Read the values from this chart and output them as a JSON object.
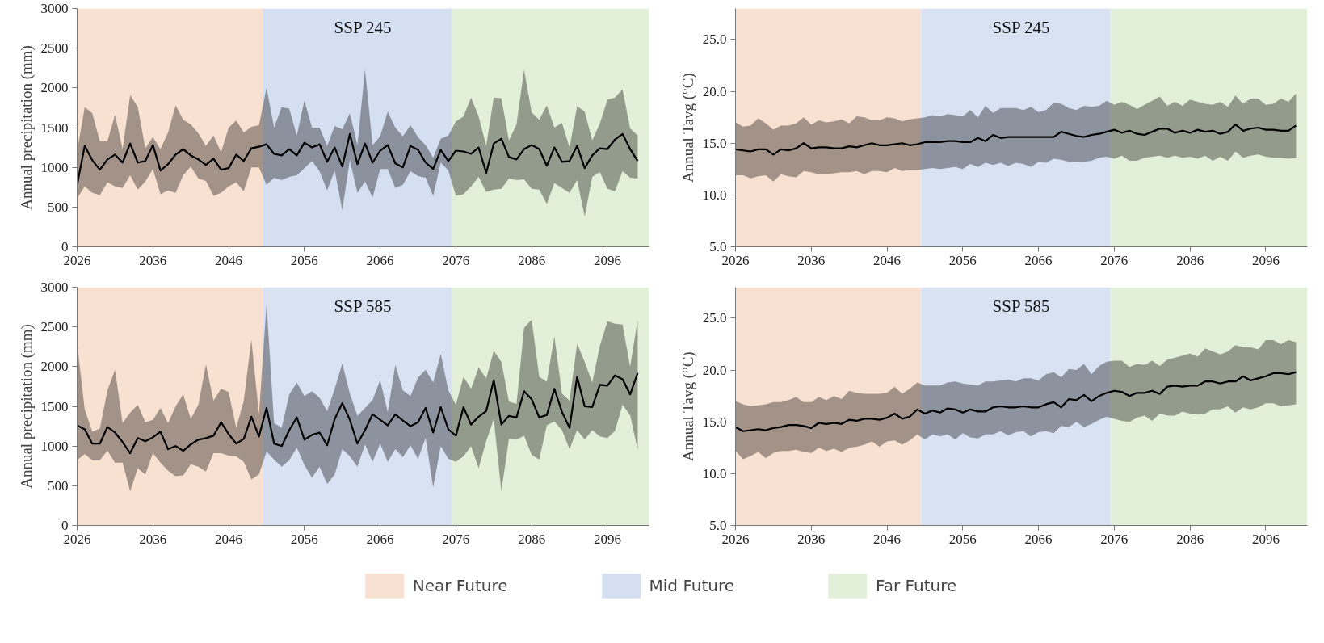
{
  "chart_data": [
    {
      "type": "line",
      "title": "SSP 245",
      "ylabel": "Annual precipitation (mm)",
      "legend": "bottom",
      "grid": false,
      "xlim": [
        2026,
        2101.5
      ],
      "xticks": [
        2026,
        2036,
        2046,
        2056,
        2066,
        2076,
        2086,
        2096
      ],
      "ylim": [
        0,
        3000
      ],
      "yticks": [
        0,
        500,
        1000,
        1500,
        2000,
        2500,
        3000
      ],
      "bands": [
        {
          "axis": "x",
          "from": 2026,
          "to": 2050.5,
          "label": "Near Future",
          "color": "#f9e1d2"
        },
        {
          "axis": "x",
          "from": 2050.5,
          "to": 2075.5,
          "label": "Mid Future",
          "color": "#d4dff2"
        },
        {
          "axis": "x",
          "from": 2075.5,
          "to": 2101.5,
          "label": "Far Future",
          "color": "#e2efd9"
        }
      ],
      "x": [
        2026,
        2027,
        2028,
        2029,
        2030,
        2031,
        2032,
        2033,
        2034,
        2035,
        2036,
        2037,
        2038,
        2039,
        2040,
        2041,
        2042,
        2043,
        2044,
        2045,
        2046,
        2047,
        2048,
        2049,
        2050,
        2051,
        2052,
        2053,
        2054,
        2055,
        2056,
        2057,
        2058,
        2059,
        2060,
        2061,
        2062,
        2063,
        2064,
        2065,
        2066,
        2067,
        2068,
        2069,
        2070,
        2071,
        2072,
        2073,
        2074,
        2075,
        2076,
        2077,
        2078,
        2079,
        2080,
        2081,
        2082,
        2083,
        2084,
        2085,
        2086,
        2087,
        2088,
        2089,
        2090,
        2091,
        2092,
        2093,
        2094,
        2095,
        2096,
        2097,
        2098,
        2099,
        2100
      ],
      "series": [
        {
          "color": "#000000",
          "values": [
            780,
            1270,
            1090,
            970,
            1100,
            1160,
            1060,
            1300,
            1060,
            1080,
            1280,
            960,
            1040,
            1160,
            1230,
            1150,
            1100,
            1030,
            1110,
            970,
            990,
            1160,
            1080,
            1240,
            1260,
            1290,
            1170,
            1150,
            1230,
            1150,
            1310,
            1250,
            1290,
            1070,
            1250,
            1010,
            1420,
            1040,
            1300,
            1060,
            1210,
            1280,
            1050,
            1000,
            1270,
            1220,
            1060,
            980,
            1220,
            1080,
            1210,
            1200,
            1170,
            1250,
            930,
            1300,
            1360,
            1130,
            1100,
            1230,
            1280,
            1230,
            1020,
            1250,
            1070,
            1080,
            1270,
            990,
            1150,
            1240,
            1230,
            1350,
            1420,
            1230,
            1080
          ],
          "upper": [
            1200,
            1760,
            1680,
            1330,
            1330,
            1660,
            1230,
            1910,
            1760,
            1240,
            1380,
            1230,
            1440,
            1780,
            1600,
            1540,
            1430,
            1270,
            1400,
            1190,
            1500,
            1590,
            1440,
            1510,
            1530,
            2000,
            1500,
            1760,
            1740,
            1400,
            1840,
            1500,
            1500,
            1270,
            1520,
            1480,
            1680,
            1280,
            2230,
            1280,
            1390,
            1700,
            1500,
            1390,
            1530,
            1380,
            1280,
            1120,
            1360,
            1400,
            1580,
            1640,
            1880,
            1640,
            1270,
            1880,
            1870,
            1340,
            1540,
            2230,
            1690,
            1600,
            1780,
            1500,
            1560,
            1250,
            1770,
            1700,
            1340,
            1550,
            1850,
            1880,
            1980,
            1490,
            1400
          ],
          "lower": [
            610,
            760,
            680,
            650,
            810,
            760,
            740,
            900,
            720,
            820,
            980,
            660,
            710,
            680,
            900,
            1010,
            860,
            830,
            640,
            680,
            760,
            810,
            700,
            1000,
            1000,
            780,
            870,
            840,
            880,
            900,
            990,
            1080,
            950,
            710,
            960,
            460,
            1090,
            680,
            820,
            620,
            980,
            980,
            740,
            780,
            950,
            890,
            870,
            640,
            1060,
            960,
            640,
            660,
            760,
            880,
            690,
            720,
            730,
            860,
            840,
            850,
            730,
            720,
            540,
            800,
            740,
            680,
            840,
            380,
            880,
            940,
            730,
            700,
            950,
            870,
            860
          ]
        }
      ]
    },
    {
      "type": "line",
      "title": "SSP 245",
      "ylabel": "Annual Tavg (°C)",
      "grid": false,
      "xlim": [
        2026,
        2101.5
      ],
      "xticks": [
        2026,
        2036,
        2046,
        2056,
        2066,
        2076,
        2086,
        2096
      ],
      "ylim": [
        5,
        28
      ],
      "yticks": [
        {
          "value": 5,
          "label": "5.0"
        },
        {
          "value": 10,
          "label": "10.0"
        },
        {
          "value": 15,
          "label": "15.0"
        },
        {
          "value": 20,
          "label": "20.0"
        },
        {
          "value": 25,
          "label": "25.0"
        }
      ],
      "bands": [
        {
          "axis": "x",
          "from": 2026,
          "to": 2050.5,
          "color": "#f9e1d2"
        },
        {
          "axis": "x",
          "from": 2050.5,
          "to": 2075.5,
          "color": "#d9e2f3"
        },
        {
          "axis": "x",
          "from": 2075.5,
          "to": 2101.5,
          "color": "#e2efd9"
        }
      ],
      "x": [
        2026,
        2027,
        2028,
        2029,
        2030,
        2031,
        2032,
        2033,
        2034,
        2035,
        2036,
        2037,
        2038,
        2039,
        2040,
        2041,
        2042,
        2043,
        2044,
        2045,
        2046,
        2047,
        2048,
        2049,
        2050,
        2051,
        2052,
        2053,
        2054,
        2055,
        2056,
        2057,
        2058,
        2059,
        2060,
        2061,
        2062,
        2063,
        2064,
        2065,
        2066,
        2067,
        2068,
        2069,
        2070,
        2071,
        2072,
        2073,
        2074,
        2075,
        2076,
        2077,
        2078,
        2079,
        2080,
        2081,
        2082,
        2083,
        2084,
        2085,
        2086,
        2087,
        2088,
        2089,
        2090,
        2091,
        2092,
        2093,
        2094,
        2095,
        2096,
        2097,
        2098,
        2099,
        2100
      ],
      "series": [
        {
          "color": "#000000",
          "values": [
            14.4,
            14.3,
            14.2,
            14.4,
            14.4,
            13.9,
            14.4,
            14.3,
            14.5,
            15.0,
            14.5,
            14.6,
            14.6,
            14.5,
            14.5,
            14.7,
            14.6,
            14.8,
            15.0,
            14.8,
            14.8,
            14.9,
            15.0,
            14.8,
            14.9,
            15.1,
            15.1,
            15.1,
            15.2,
            15.2,
            15.1,
            15.1,
            15.5,
            15.2,
            15.8,
            15.5,
            15.6,
            15.6,
            15.6,
            15.6,
            15.6,
            15.6,
            15.6,
            16.1,
            15.9,
            15.7,
            15.6,
            15.8,
            15.9,
            16.1,
            16.3,
            16.0,
            16.2,
            15.9,
            15.8,
            16.1,
            16.4,
            16.4,
            16.0,
            16.2,
            16.0,
            16.3,
            16.1,
            16.2,
            15.9,
            16.1,
            16.8,
            16.2,
            16.4,
            16.5,
            16.3,
            16.3,
            16.2,
            16.2,
            16.7
          ],
          "upper": [
            17.0,
            16.6,
            16.7,
            17.4,
            16.9,
            16.3,
            16.7,
            16.7,
            16.9,
            17.5,
            16.8,
            17.2,
            17.0,
            17.1,
            17.3,
            16.9,
            17.6,
            17.5,
            17.2,
            17.2,
            17.5,
            17.4,
            17.1,
            17.3,
            17.4,
            17.5,
            17.7,
            17.6,
            17.8,
            17.7,
            17.6,
            18.2,
            17.5,
            18.6,
            17.9,
            18.4,
            18.4,
            18.4,
            18.2,
            18.5,
            18.0,
            18.2,
            18.9,
            18.8,
            18.4,
            18.2,
            18.6,
            18.5,
            18.6,
            19.1,
            18.7,
            19.0,
            18.7,
            18.3,
            18.7,
            19.1,
            19.5,
            18.6,
            19.0,
            18.6,
            19.2,
            19.0,
            18.8,
            18.7,
            19.0,
            18.5,
            19.6,
            18.8,
            19.3,
            19.3,
            18.7,
            18.8,
            19.3,
            19.0,
            19.8
          ],
          "lower": [
            11.9,
            11.9,
            11.6,
            11.8,
            11.9,
            11.3,
            12.0,
            11.8,
            11.7,
            12.3,
            12.2,
            12.0,
            12.0,
            12.1,
            12.2,
            12.2,
            12.3,
            12.0,
            12.3,
            12.3,
            12.2,
            12.6,
            12.3,
            12.4,
            12.4,
            12.5,
            12.6,
            12.5,
            12.6,
            12.7,
            12.5,
            13.0,
            12.7,
            13.1,
            12.9,
            13.1,
            12.8,
            13.1,
            13.0,
            12.7,
            13.2,
            13.1,
            13.5,
            13.4,
            13.2,
            13.2,
            13.2,
            13.3,
            13.6,
            13.7,
            13.5,
            13.8,
            13.3,
            13.3,
            13.6,
            13.7,
            13.8,
            13.6,
            13.8,
            13.6,
            13.7,
            13.5,
            13.8,
            13.3,
            13.7,
            13.3,
            14.2,
            13.6,
            13.8,
            13.9,
            13.7,
            13.6,
            13.6,
            13.5,
            13.6
          ]
        }
      ]
    },
    {
      "type": "line",
      "title": "SSP 585",
      "ylabel": "Annual precipitation (mm)",
      "grid": false,
      "xlim": [
        2026,
        2101.5
      ],
      "xticks": [
        2026,
        2036,
        2046,
        2056,
        2066,
        2076,
        2086,
        2096
      ],
      "ylim": [
        0,
        3000
      ],
      "yticks": [
        0,
        500,
        1000,
        1500,
        2000,
        2500,
        3000
      ],
      "bands": [
        {
          "axis": "x",
          "from": 2026,
          "to": 2050.5,
          "color": "#f9e1d2"
        },
        {
          "axis": "x",
          "from": 2050.5,
          "to": 2075.5,
          "color": "#d9e2f3"
        },
        {
          "axis": "x",
          "from": 2075.5,
          "to": 2101.5,
          "color": "#e2efd9"
        }
      ],
      "x": [
        2026,
        2027,
        2028,
        2029,
        2030,
        2031,
        2032,
        2033,
        2034,
        2035,
        2036,
        2037,
        2038,
        2039,
        2040,
        2041,
        2042,
        2043,
        2044,
        2045,
        2046,
        2047,
        2048,
        2049,
        2050,
        2051,
        2052,
        2053,
        2054,
        2055,
        2056,
        2057,
        2058,
        2059,
        2060,
        2061,
        2062,
        2063,
        2064,
        2065,
        2066,
        2067,
        2068,
        2069,
        2070,
        2071,
        2072,
        2073,
        2074,
        2075,
        2076,
        2077,
        2078,
        2079,
        2080,
        2081,
        2082,
        2083,
        2084,
        2085,
        2086,
        2087,
        2088,
        2089,
        2090,
        2091,
        2092,
        2093,
        2094,
        2095,
        2096,
        2097,
        2098,
        2099,
        2100
      ],
      "series": [
        {
          "color": "#000000",
          "values": [
            1260,
            1210,
            1030,
            1030,
            1240,
            1170,
            1050,
            910,
            1100,
            1060,
            1110,
            1180,
            960,
            1000,
            940,
            1020,
            1080,
            1100,
            1130,
            1300,
            1150,
            1030,
            1090,
            1370,
            1120,
            1480,
            1030,
            1000,
            1200,
            1360,
            1080,
            1140,
            1170,
            1010,
            1340,
            1540,
            1330,
            1030,
            1200,
            1400,
            1330,
            1260,
            1400,
            1320,
            1250,
            1300,
            1480,
            1170,
            1490,
            1210,
            1130,
            1490,
            1270,
            1370,
            1440,
            1830,
            1270,
            1380,
            1360,
            1690,
            1590,
            1360,
            1390,
            1720,
            1430,
            1230,
            1870,
            1500,
            1490,
            1770,
            1760,
            1890,
            1840,
            1650,
            1920
          ],
          "upper": [
            2290,
            1460,
            1180,
            1220,
            1700,
            1960,
            1290,
            1420,
            1520,
            1300,
            1330,
            1480,
            1290,
            1500,
            1650,
            1340,
            1520,
            2030,
            1570,
            1720,
            1680,
            1230,
            1570,
            2340,
            1400,
            2790,
            1290,
            1230,
            1650,
            1800,
            1630,
            1690,
            1610,
            1440,
            1720,
            2040,
            1660,
            1380,
            1480,
            1580,
            1830,
            1430,
            2020,
            1700,
            1630,
            1860,
            1960,
            1800,
            2160,
            1700,
            1520,
            1870,
            1720,
            1990,
            1850,
            2200,
            2060,
            1560,
            1530,
            2490,
            2590,
            1870,
            1810,
            2380,
            1660,
            1570,
            2290,
            2060,
            1800,
            2260,
            2570,
            2540,
            2530,
            2000,
            2590
          ],
          "lower": [
            820,
            900,
            820,
            820,
            940,
            790,
            790,
            430,
            720,
            640,
            910,
            790,
            690,
            620,
            630,
            770,
            740,
            680,
            910,
            910,
            880,
            870,
            800,
            580,
            640,
            930,
            830,
            740,
            820,
            980,
            760,
            600,
            740,
            520,
            640,
            960,
            870,
            740,
            1020,
            800,
            1030,
            800,
            960,
            860,
            1010,
            840,
            1100,
            480,
            1000,
            840,
            800,
            870,
            1000,
            720,
            1060,
            1340,
            430,
            1090,
            1080,
            1130,
            890,
            830,
            1260,
            1310,
            1200,
            960,
            1200,
            1080,
            1200,
            1120,
            1100,
            1190,
            1520,
            1390,
            950
          ]
        }
      ]
    },
    {
      "type": "line",
      "title": "SSP 585",
      "ylabel": "Annual Tavg (°C)",
      "grid": false,
      "xlim": [
        2026,
        2101.5
      ],
      "xticks": [
        2026,
        2036,
        2046,
        2056,
        2066,
        2076,
        2086,
        2096
      ],
      "ylim": [
        5,
        28
      ],
      "yticks": [
        {
          "value": 5,
          "label": "5.0"
        },
        {
          "value": 10,
          "label": "10.0"
        },
        {
          "value": 15,
          "label": "15.0"
        },
        {
          "value": 20,
          "label": "20.0"
        },
        {
          "value": 25,
          "label": "25.0"
        }
      ],
      "bands": [
        {
          "axis": "x",
          "from": 2026,
          "to": 2050.5,
          "color": "#f9e1d2"
        },
        {
          "axis": "x",
          "from": 2050.5,
          "to": 2075.5,
          "color": "#d9e2f3"
        },
        {
          "axis": "x",
          "from": 2075.5,
          "to": 2101.5,
          "color": "#e2efd9"
        }
      ],
      "x": [
        2026,
        2027,
        2028,
        2029,
        2030,
        2031,
        2032,
        2033,
        2034,
        2035,
        2036,
        2037,
        2038,
        2039,
        2040,
        2041,
        2042,
        2043,
        2044,
        2045,
        2046,
        2047,
        2048,
        2049,
        2050,
        2051,
        2052,
        2053,
        2054,
        2055,
        2056,
        2057,
        2058,
        2059,
        2060,
        2061,
        2062,
        2063,
        2064,
        2065,
        2066,
        2067,
        2068,
        2069,
        2070,
        2071,
        2072,
        2073,
        2074,
        2075,
        2076,
        2077,
        2078,
        2079,
        2080,
        2081,
        2082,
        2083,
        2084,
        2085,
        2086,
        2087,
        2088,
        2089,
        2090,
        2091,
        2092,
        2093,
        2094,
        2095,
        2096,
        2097,
        2098,
        2099,
        2100
      ],
      "series": [
        {
          "color": "#000000",
          "values": [
            14.5,
            14.1,
            14.2,
            14.3,
            14.2,
            14.4,
            14.5,
            14.7,
            14.7,
            14.6,
            14.4,
            14.9,
            14.8,
            14.9,
            14.8,
            15.2,
            15.1,
            15.3,
            15.3,
            15.2,
            15.4,
            15.8,
            15.3,
            15.5,
            16.2,
            15.8,
            16.1,
            15.9,
            16.3,
            16.2,
            15.9,
            16.2,
            16.0,
            16.0,
            16.4,
            16.5,
            16.4,
            16.4,
            16.5,
            16.4,
            16.4,
            16.7,
            16.9,
            16.4,
            17.2,
            17.1,
            17.6,
            17.0,
            17.5,
            17.8,
            18.0,
            17.9,
            17.5,
            17.8,
            17.8,
            18.0,
            17.7,
            18.4,
            18.5,
            18.4,
            18.5,
            18.5,
            18.9,
            18.9,
            18.7,
            18.9,
            18.9,
            19.4,
            19.0,
            19.2,
            19.4,
            19.7,
            19.7,
            19.6,
            19.8
          ],
          "upper": [
            17.0,
            16.7,
            16.5,
            16.6,
            16.7,
            16.9,
            16.9,
            17.1,
            17.4,
            16.9,
            16.9,
            17.4,
            17.1,
            17.5,
            17.2,
            18.0,
            17.8,
            17.7,
            17.7,
            17.7,
            17.8,
            18.4,
            17.7,
            18.2,
            18.8,
            18.5,
            18.5,
            18.5,
            18.8,
            18.9,
            18.7,
            18.6,
            18.5,
            18.9,
            18.9,
            19.0,
            19.1,
            18.9,
            19.2,
            19.2,
            19.0,
            19.6,
            19.8,
            19.3,
            20.1,
            20.0,
            20.6,
            19.6,
            20.4,
            20.8,
            20.9,
            20.9,
            20.3,
            20.6,
            20.5,
            20.9,
            20.4,
            21.0,
            21.2,
            21.4,
            21.6,
            21.3,
            22.1,
            21.8,
            21.5,
            21.8,
            22.4,
            22.2,
            22.2,
            22.0,
            22.9,
            22.9,
            22.5,
            22.9,
            22.7
          ],
          "lower": [
            12.2,
            11.4,
            11.7,
            12.1,
            11.5,
            12.0,
            12.2,
            12.2,
            12.3,
            12.1,
            12.0,
            12.5,
            12.2,
            12.4,
            12.1,
            12.5,
            12.6,
            12.8,
            13.1,
            12.6,
            13.1,
            13.2,
            12.8,
            13.2,
            13.8,
            13.3,
            13.8,
            13.6,
            13.8,
            13.3,
            13.9,
            13.5,
            13.4,
            13.8,
            13.8,
            14.1,
            13.7,
            14.0,
            14.1,
            13.6,
            14.0,
            14.1,
            13.9,
            14.6,
            14.5,
            15.0,
            14.5,
            14.8,
            15.2,
            15.5,
            15.3,
            15.1,
            15.0,
            15.4,
            15.6,
            15.1,
            15.8,
            15.6,
            15.6,
            16.0,
            15.8,
            15.7,
            15.8,
            16.2,
            16.2,
            16.5,
            15.9,
            16.4,
            16.2,
            16.4,
            16.8,
            16.8,
            16.5,
            16.6,
            16.7
          ]
        }
      ]
    }
  ]
}
